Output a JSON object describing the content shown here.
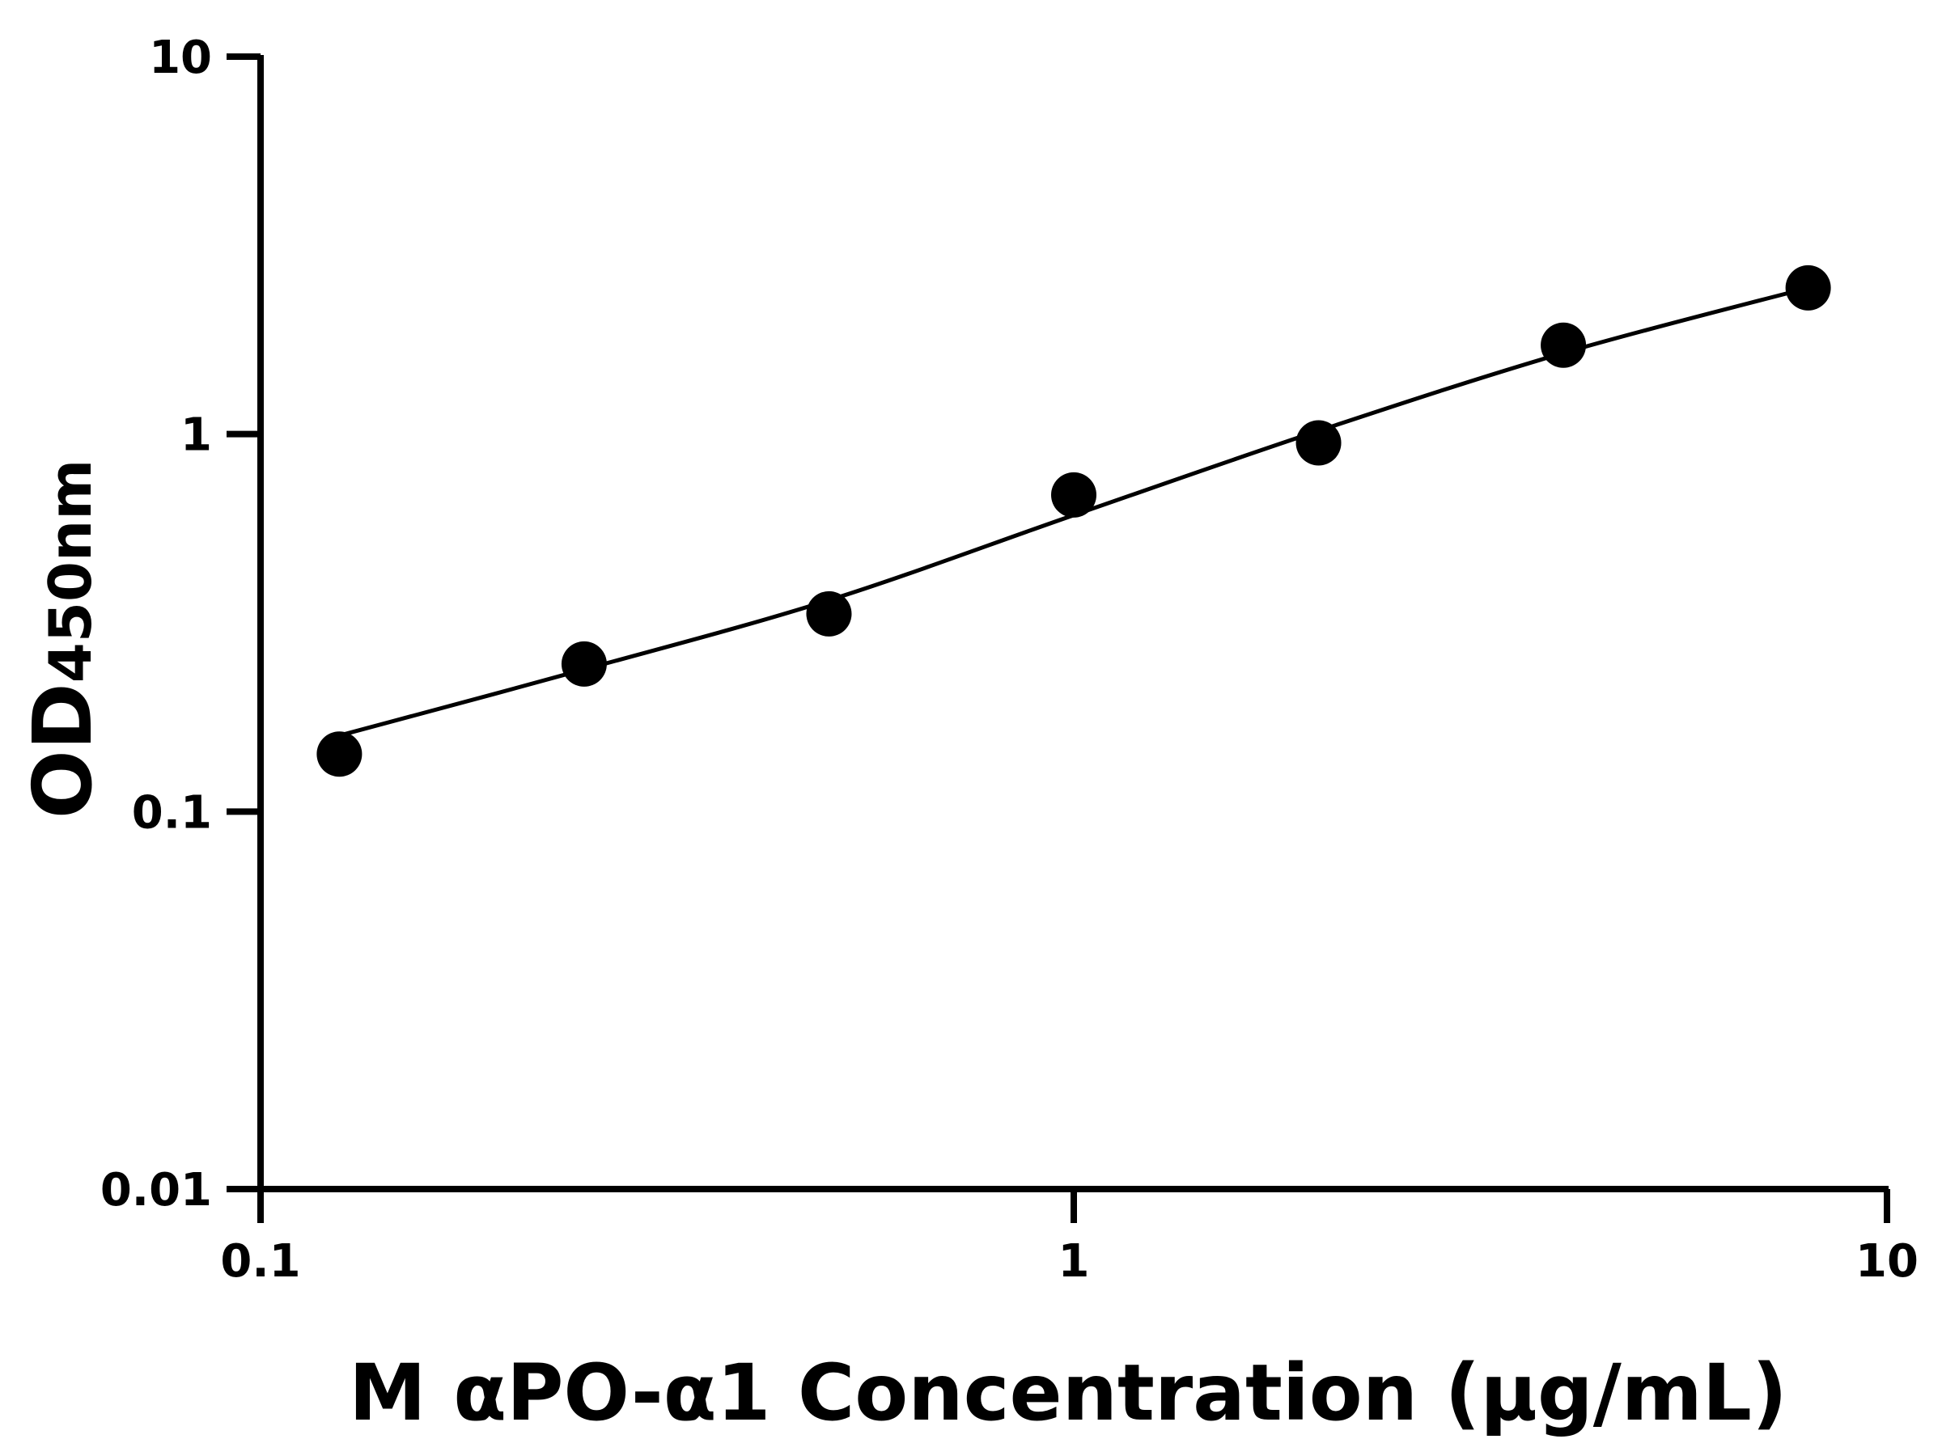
{
  "chart_data": {
    "type": "scatter",
    "title": "",
    "xlabel": "M αPO-α1 Concentration (μg/mL)",
    "ylabel_main": "OD",
    "ylabel_sub": "450nm",
    "x_scale": "log",
    "y_scale": "log",
    "xlim": [
      0.1,
      10
    ],
    "ylim": [
      0.01,
      10
    ],
    "x_ticks": [
      "0.1",
      "1",
      "10"
    ],
    "y_ticks": [
      "0.01",
      "0.1",
      "1",
      "10"
    ],
    "grid": false,
    "series": [
      {
        "x": [
          0.125,
          0.25,
          0.5,
          1,
          2,
          4,
          8
        ],
        "y": [
          0.142,
          0.246,
          0.334,
          0.69,
          0.948,
          1.72,
          2.44
        ]
      }
    ],
    "fit_curve": {
      "x": [
        0.125,
        0.25,
        0.5,
        1,
        2,
        4,
        8
      ],
      "y": [
        0.159,
        0.238,
        0.363,
        0.61,
        1.02,
        1.64,
        2.44
      ]
    },
    "colors": {
      "marker": "#000000",
      "line": "#000000",
      "axis": "#000000"
    }
  }
}
